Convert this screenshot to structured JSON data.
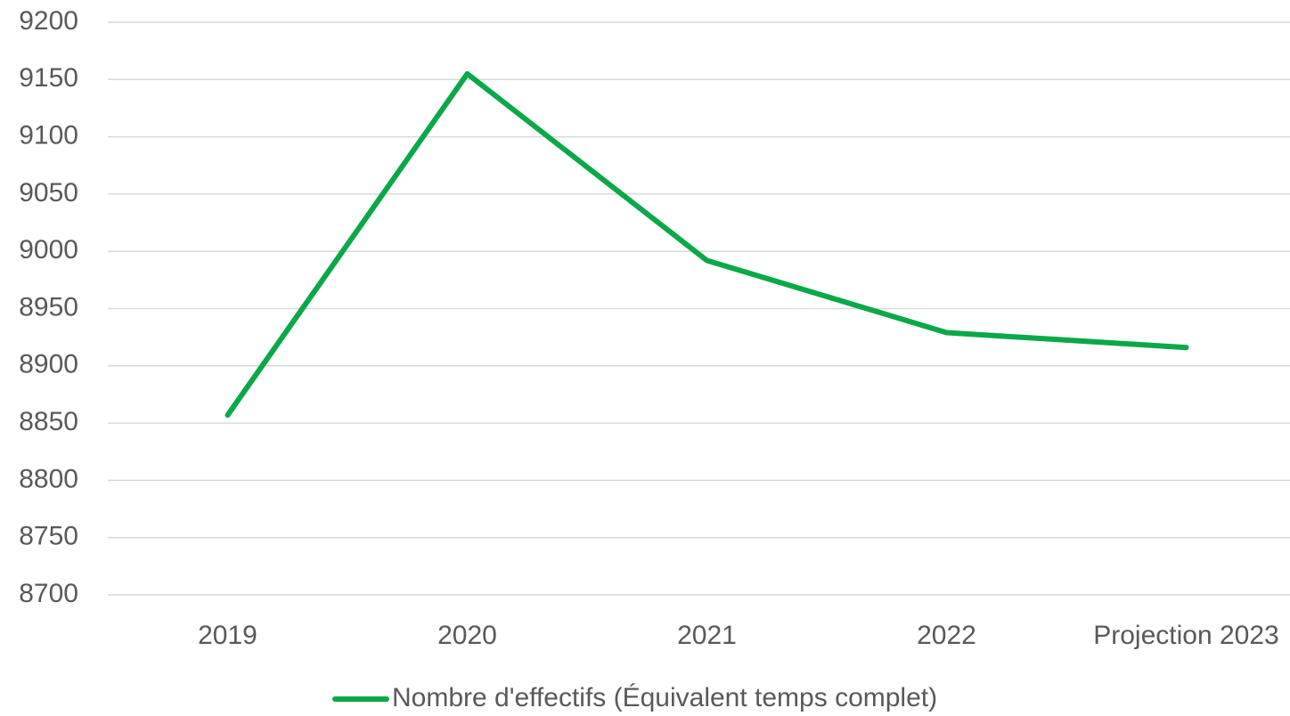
{
  "chart_data": {
    "type": "line",
    "categories": [
      "2019",
      "2020",
      "2021",
      "2022",
      "Projection 2023"
    ],
    "series": [
      {
        "name": "Nombre d'effectifs (Équivalent temps complet)",
        "color": "#0ba84a",
        "values": [
          8857,
          9155,
          8992,
          8929,
          8916
        ]
      }
    ],
    "ylim": [
      8700,
      9200
    ],
    "yticks": [
      8700,
      8750,
      8800,
      8850,
      8900,
      8950,
      9000,
      9050,
      9100,
      9150,
      9200
    ],
    "grid": true,
    "legend": "bottom"
  }
}
